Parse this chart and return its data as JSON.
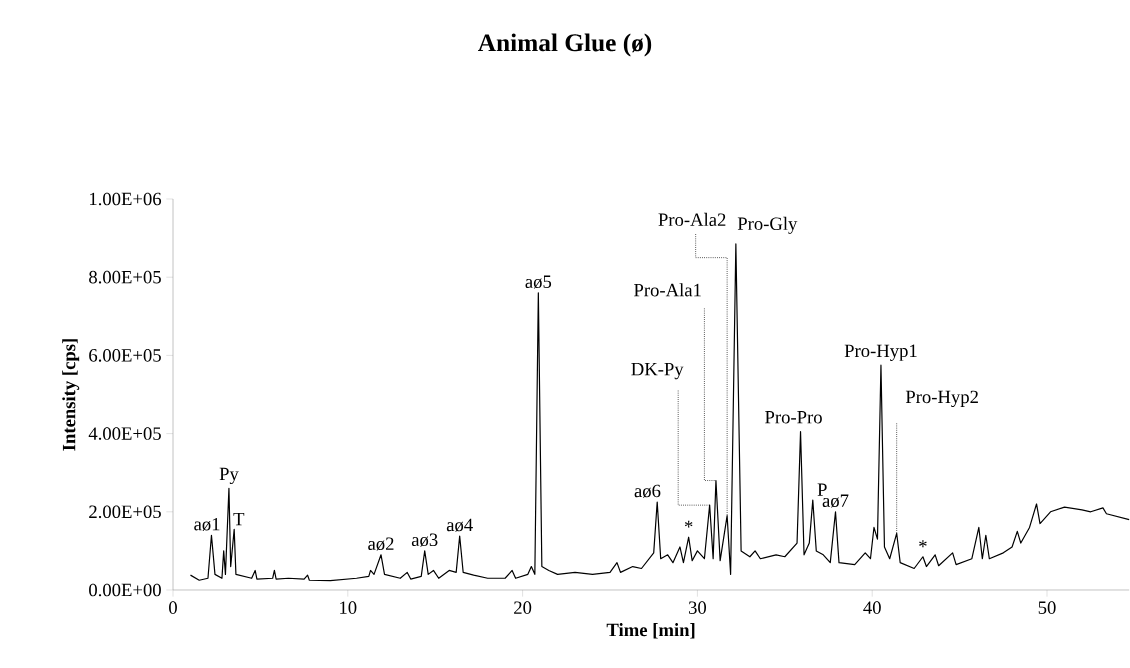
{
  "chart_data": {
    "type": "line",
    "title": "**Animal Glue (ø)**",
    "xlabel": "Time [min]",
    "ylabel": "Intensity [cps]",
    "color": "#000000",
    "xlim": [
      0,
      54.7
    ],
    "ylim": [
      0,
      1000000
    ],
    "xticks": [
      0,
      10,
      20,
      30,
      40,
      50
    ],
    "yticks": [
      {
        "value": 0,
        "label": "0.00E+00"
      },
      {
        "value": 200000,
        "label": "2.00E+05"
      },
      {
        "value": 400000,
        "label": "4.00E+05"
      },
      {
        "value": 600000,
        "label": "6.00E+05"
      },
      {
        "value": 800000,
        "label": "8.00E+05"
      },
      {
        "value": 1000000,
        "label": "1.00E+06"
      }
    ],
    "x": [
      1.0,
      1.5,
      2.0,
      2.2,
      2.4,
      2.8,
      2.9,
      3.0,
      3.2,
      3.3,
      3.5,
      3.6,
      4.5,
      4.7,
      4.8,
      5.7,
      5.8,
      5.9,
      6.6,
      7.5,
      7.7,
      7.8,
      9.0,
      10.5,
      11.2,
      11.3,
      11.5,
      11.9,
      12.1,
      13.0,
      13.4,
      13.6,
      14.2,
      14.4,
      14.6,
      14.9,
      15.2,
      15.8,
      16.2,
      16.4,
      16.6,
      17.2,
      18.0,
      19.0,
      19.4,
      19.6,
      20.3,
      20.5,
      20.7,
      20.9,
      21.1,
      21.5,
      22.0,
      23.0,
      24.0,
      25.0,
      25.4,
      25.6,
      26.3,
      26.8,
      27.5,
      27.7,
      27.9,
      28.3,
      28.6,
      29.0,
      29.2,
      29.5,
      29.7,
      30.0,
      30.4,
      30.7,
      30.9,
      31.06,
      31.3,
      31.7,
      31.9,
      32.2,
      32.5,
      33.0,
      33.3,
      33.6,
      34.5,
      35.0,
      35.7,
      35.9,
      36.1,
      36.4,
      36.6,
      36.8,
      37.2,
      37.6,
      37.9,
      38.1,
      39.0,
      39.6,
      39.9,
      40.1,
      40.3,
      40.5,
      40.7,
      41.0,
      41.4,
      41.6,
      42.4,
      42.9,
      43.1,
      43.6,
      43.8,
      44.6,
      44.8,
      45.7,
      46.1,
      46.3,
      46.5,
      46.7,
      47.5,
      48.0,
      48.3,
      48.5,
      49.0,
      49.4,
      49.6,
      50.2,
      51.0,
      52.0,
      52.5,
      53.2,
      53.4,
      54.7
    ],
    "values": [
      38000,
      25000,
      30000,
      140000,
      40000,
      30000,
      100000,
      40000,
      260000,
      60000,
      155000,
      40000,
      30000,
      50000,
      28000,
      30000,
      50000,
      28000,
      30000,
      28000,
      38000,
      25000,
      24000,
      30000,
      35000,
      50000,
      40000,
      90000,
      40000,
      30000,
      45000,
      28000,
      35000,
      100000,
      40000,
      50000,
      30000,
      50000,
      45000,
      138000,
      45000,
      38000,
      30000,
      30000,
      50000,
      30000,
      40000,
      60000,
      40000,
      760000,
      60000,
      50000,
      40000,
      45000,
      40000,
      45000,
      70000,
      45000,
      60000,
      55000,
      95000,
      225000,
      80000,
      90000,
      70000,
      110000,
      70000,
      135000,
      75000,
      100000,
      80000,
      217000,
      80000,
      280000,
      75000,
      190000,
      40000,
      885000,
      100000,
      85000,
      100000,
      80000,
      90000,
      85000,
      120000,
      405000,
      90000,
      120000,
      230000,
      100000,
      90000,
      70000,
      200000,
      70000,
      65000,
      95000,
      80000,
      160000,
      130000,
      575000,
      110000,
      80000,
      145000,
      70000,
      55000,
      85000,
      60000,
      90000,
      62000,
      95000,
      65000,
      80000,
      160000,
      80000,
      140000,
      80000,
      95000,
      110000,
      150000,
      120000,
      160000,
      220000,
      170000,
      200000,
      212000,
      205000,
      200000,
      210000,
      195000,
      180000
    ],
    "annotations": [
      {
        "text": "aø1",
        "x": 2.2,
        "y": 140000
      },
      {
        "text": "Py",
        "x": 3.2,
        "y": 260000
      },
      {
        "text": "T",
        "x": 3.5,
        "y": 155000
      },
      {
        "text": "aø2",
        "x": 11.9,
        "y": 90000
      },
      {
        "text": "aø3",
        "x": 14.4,
        "y": 100000
      },
      {
        "text": "aø4",
        "x": 16.4,
        "y": 138000
      },
      {
        "text": "aø5",
        "x": 20.9,
        "y": 760000
      },
      {
        "text": "aø6",
        "x": 27.7,
        "y": 225000
      },
      {
        "text": "*",
        "x": 29.5,
        "y": 135000
      },
      {
        "text": "DK-Py",
        "x": 30.7,
        "y": 217000
      },
      {
        "text": "Pro-Ala1",
        "x": 31.06,
        "y": 280000
      },
      {
        "text": "Pro-Ala2",
        "x": 31.7,
        "y": 190000
      },
      {
        "text": "Pro-Gly",
        "x": 32.2,
        "y": 885000
      },
      {
        "text": "Pro-Pro",
        "x": 35.9,
        "y": 405000
      },
      {
        "text": "P",
        "x": 36.6,
        "y": 230000
      },
      {
        "text": "aø7",
        "x": 37.9,
        "y": 200000
      },
      {
        "text": "Pro-Hyp1",
        "x": 40.5,
        "y": 575000
      },
      {
        "text": "Pro-Hyp2",
        "x": 41.4,
        "y": 145000
      },
      {
        "text": "*",
        "x": 42.9,
        "y": 85000
      }
    ]
  }
}
